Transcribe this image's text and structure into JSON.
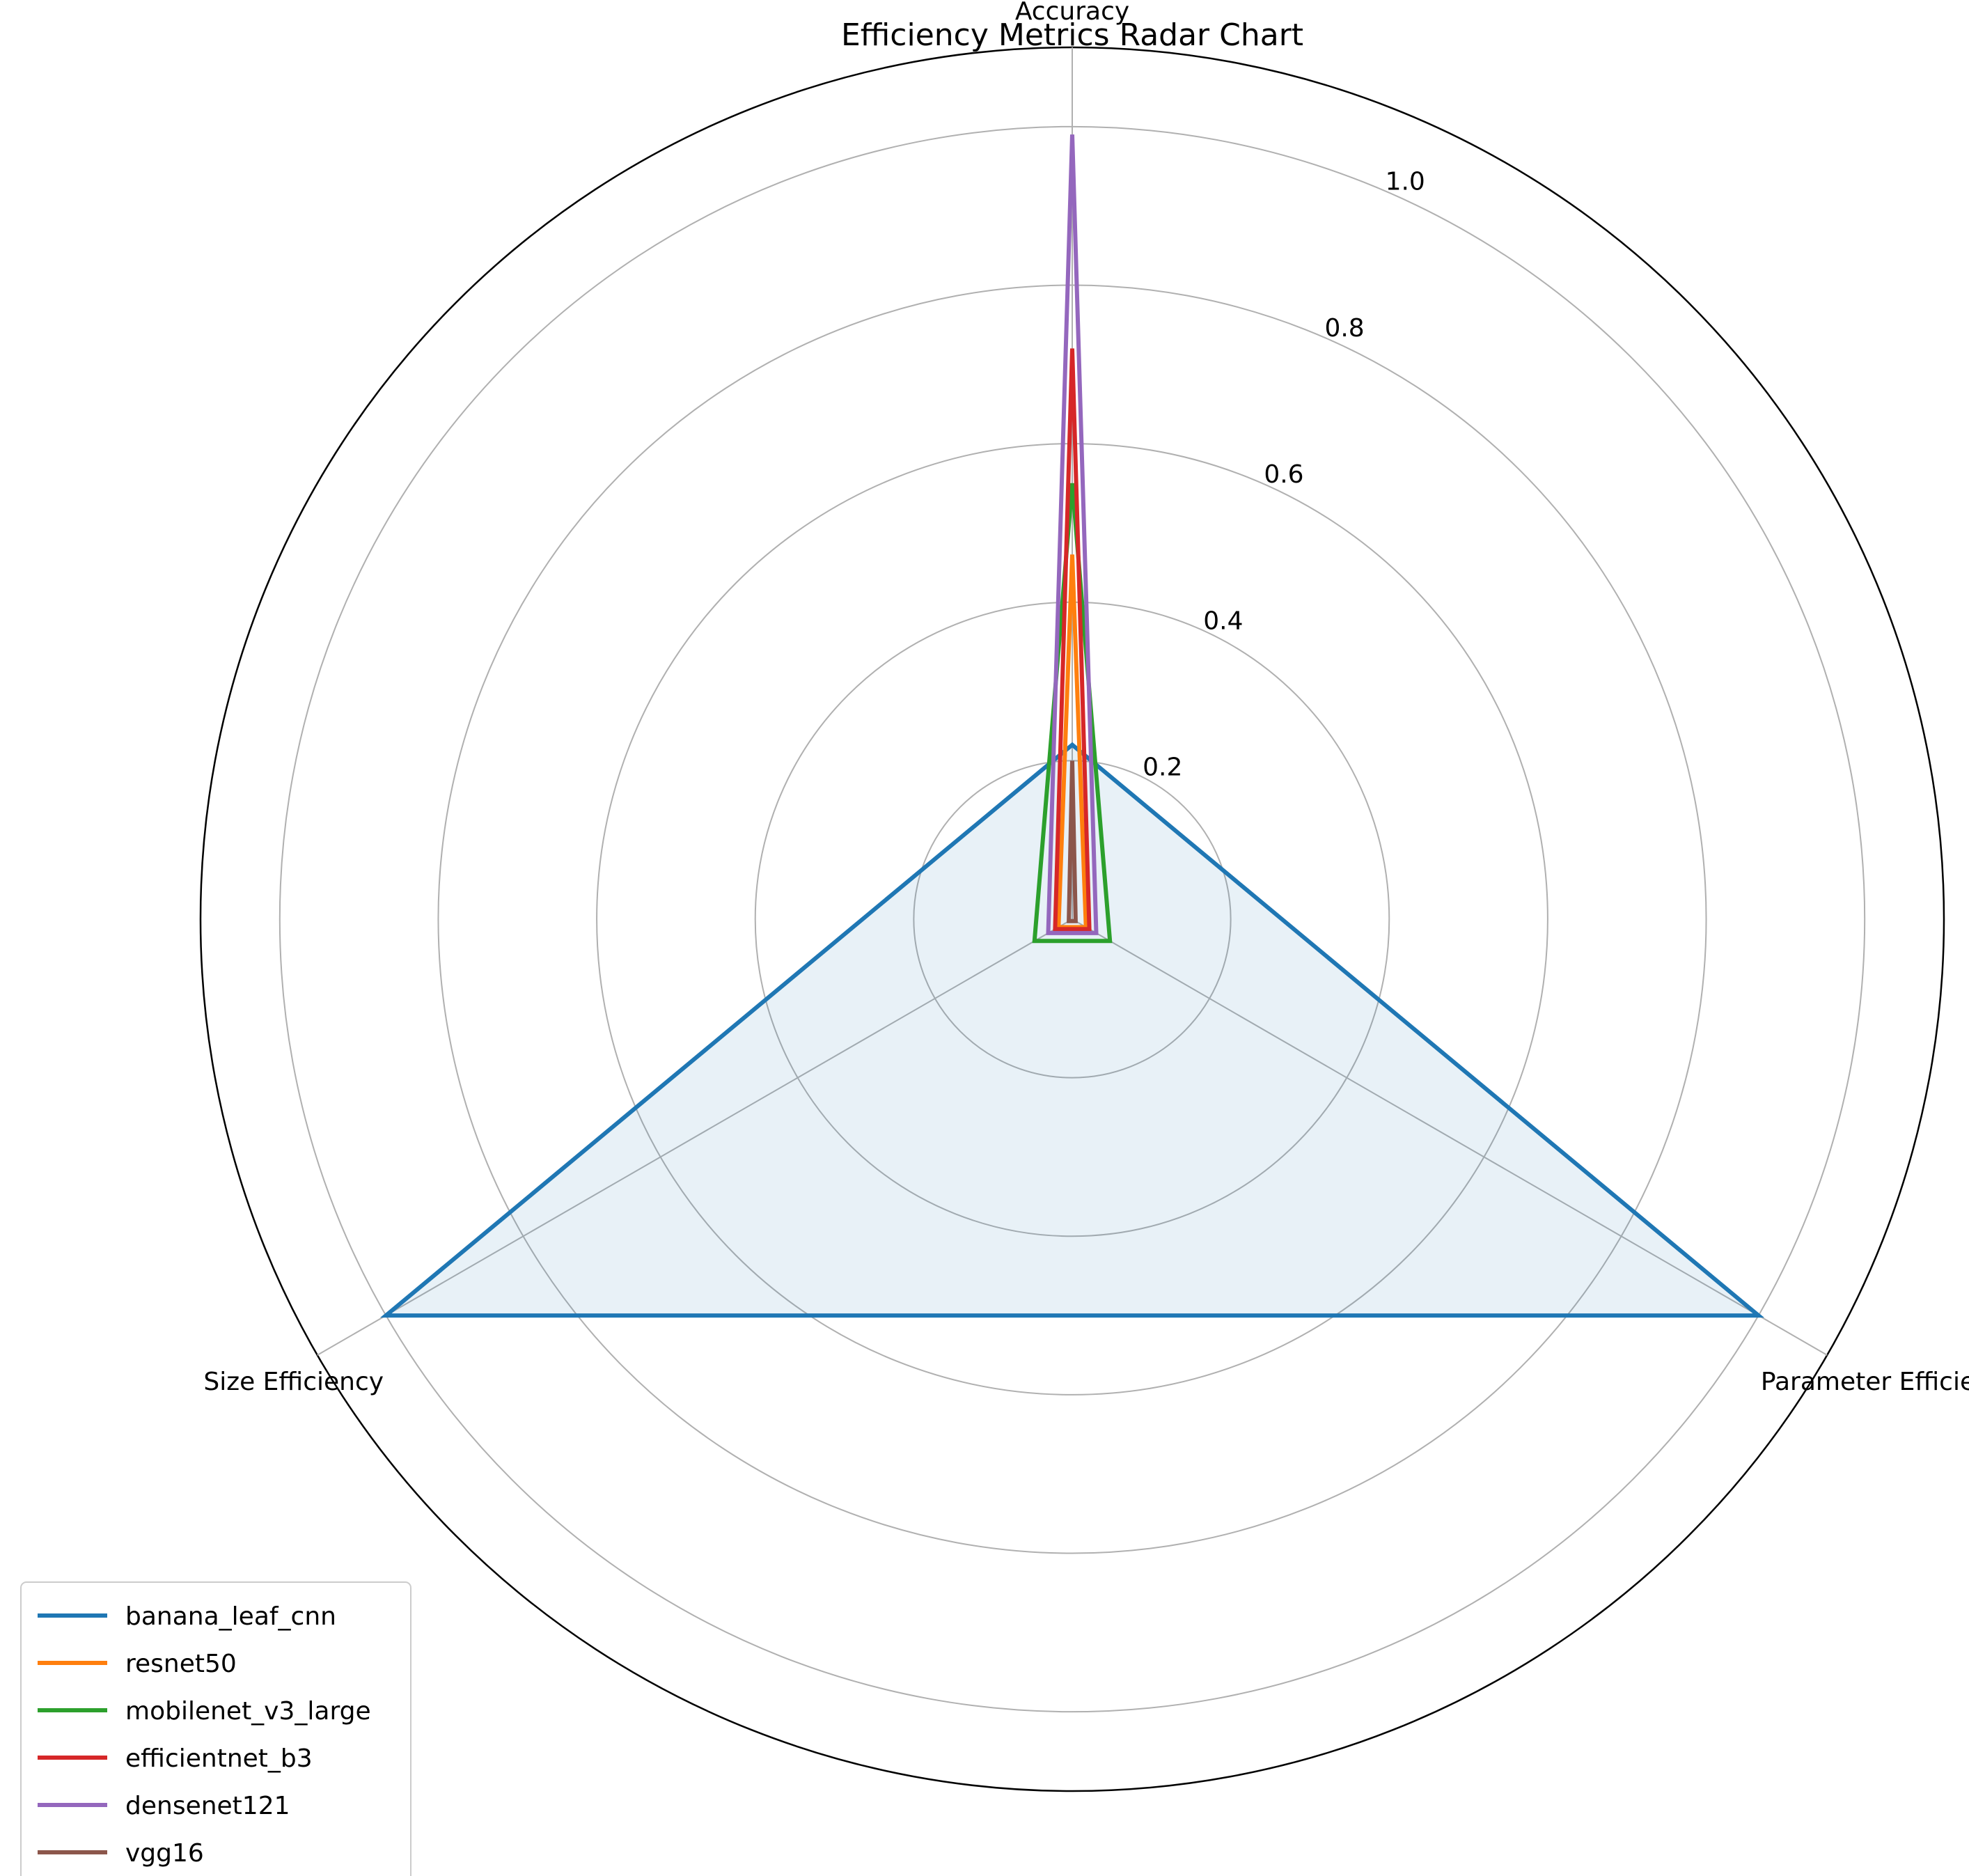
{
  "chart_data": {
    "type": "radar",
    "title": "Efficiency Metrics Radar Chart",
    "axes": [
      "Accuracy",
      "Parameter Efficiency",
      "Size Efficiency"
    ],
    "rlim": [
      0,
      1.1
    ],
    "rticks": [
      0.2,
      0.4,
      0.6,
      0.8,
      1.0
    ],
    "rtick_labels": [
      "0.2",
      "0.4",
      "0.6",
      "0.8",
      "1.0"
    ],
    "grid": true,
    "legend_position": "lower-left",
    "series": [
      {
        "name": "banana_leaf_cnn",
        "color": "#1f77b4",
        "values": [
          0.22,
          1.0,
          1.0
        ],
        "fill": true
      },
      {
        "name": "resnet50",
        "color": "#ff7f0e",
        "values": [
          0.46,
          0.02,
          0.02
        ],
        "fill": false
      },
      {
        "name": "mobilenet_v3_large",
        "color": "#2ca02c",
        "values": [
          0.55,
          0.055,
          0.055
        ],
        "fill": false
      },
      {
        "name": "efficientnet_b3",
        "color": "#d62728",
        "values": [
          0.72,
          0.025,
          0.025
        ],
        "fill": false
      },
      {
        "name": "densenet121",
        "color": "#9467bd",
        "values": [
          0.99,
          0.035,
          0.035
        ],
        "fill": false
      },
      {
        "name": "vgg16",
        "color": "#8c564b",
        "values": [
          0.2,
          0.005,
          0.005
        ],
        "fill": false
      }
    ]
  }
}
